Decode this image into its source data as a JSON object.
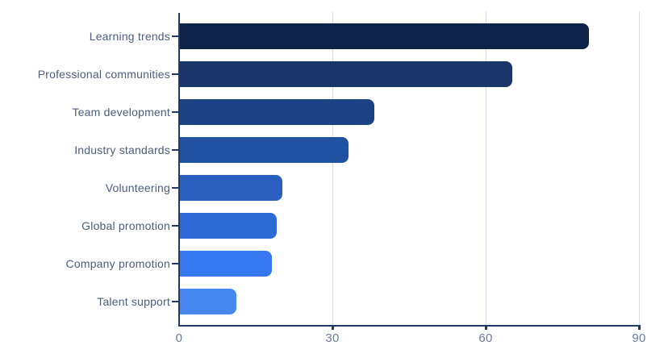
{
  "chart_data": {
    "type": "bar",
    "orientation": "horizontal",
    "title": "",
    "xlabel": "",
    "ylabel": "",
    "categories": [
      "Learning trends",
      "Professional communities",
      "Team development",
      "Industry standards",
      "Volunteering",
      "Global promotion",
      "Company promotion",
      "Talent support"
    ],
    "values": [
      80,
      65,
      38,
      33,
      20,
      19,
      18,
      11
    ],
    "bar_colors": [
      "#0e2347",
      "#1b3469",
      "#1c4286",
      "#2152a2",
      "#2a5fc0",
      "#2e6ad6",
      "#3578f0",
      "#4787f0"
    ],
    "xlim": [
      0,
      90
    ],
    "x_ticks": [
      0,
      30,
      60,
      90
    ],
    "x_tick_labels": [
      "0",
      "30",
      "60",
      "90"
    ],
    "grid": "vertical gridlines at 30, 60, 90",
    "legend": "none",
    "background_color": "#ffffff",
    "axis_color": "#1f3a69",
    "gridline_color": "#d9dde9",
    "category_label_color": "#4d5d7c",
    "tick_label_color": "#6b7a9e"
  }
}
